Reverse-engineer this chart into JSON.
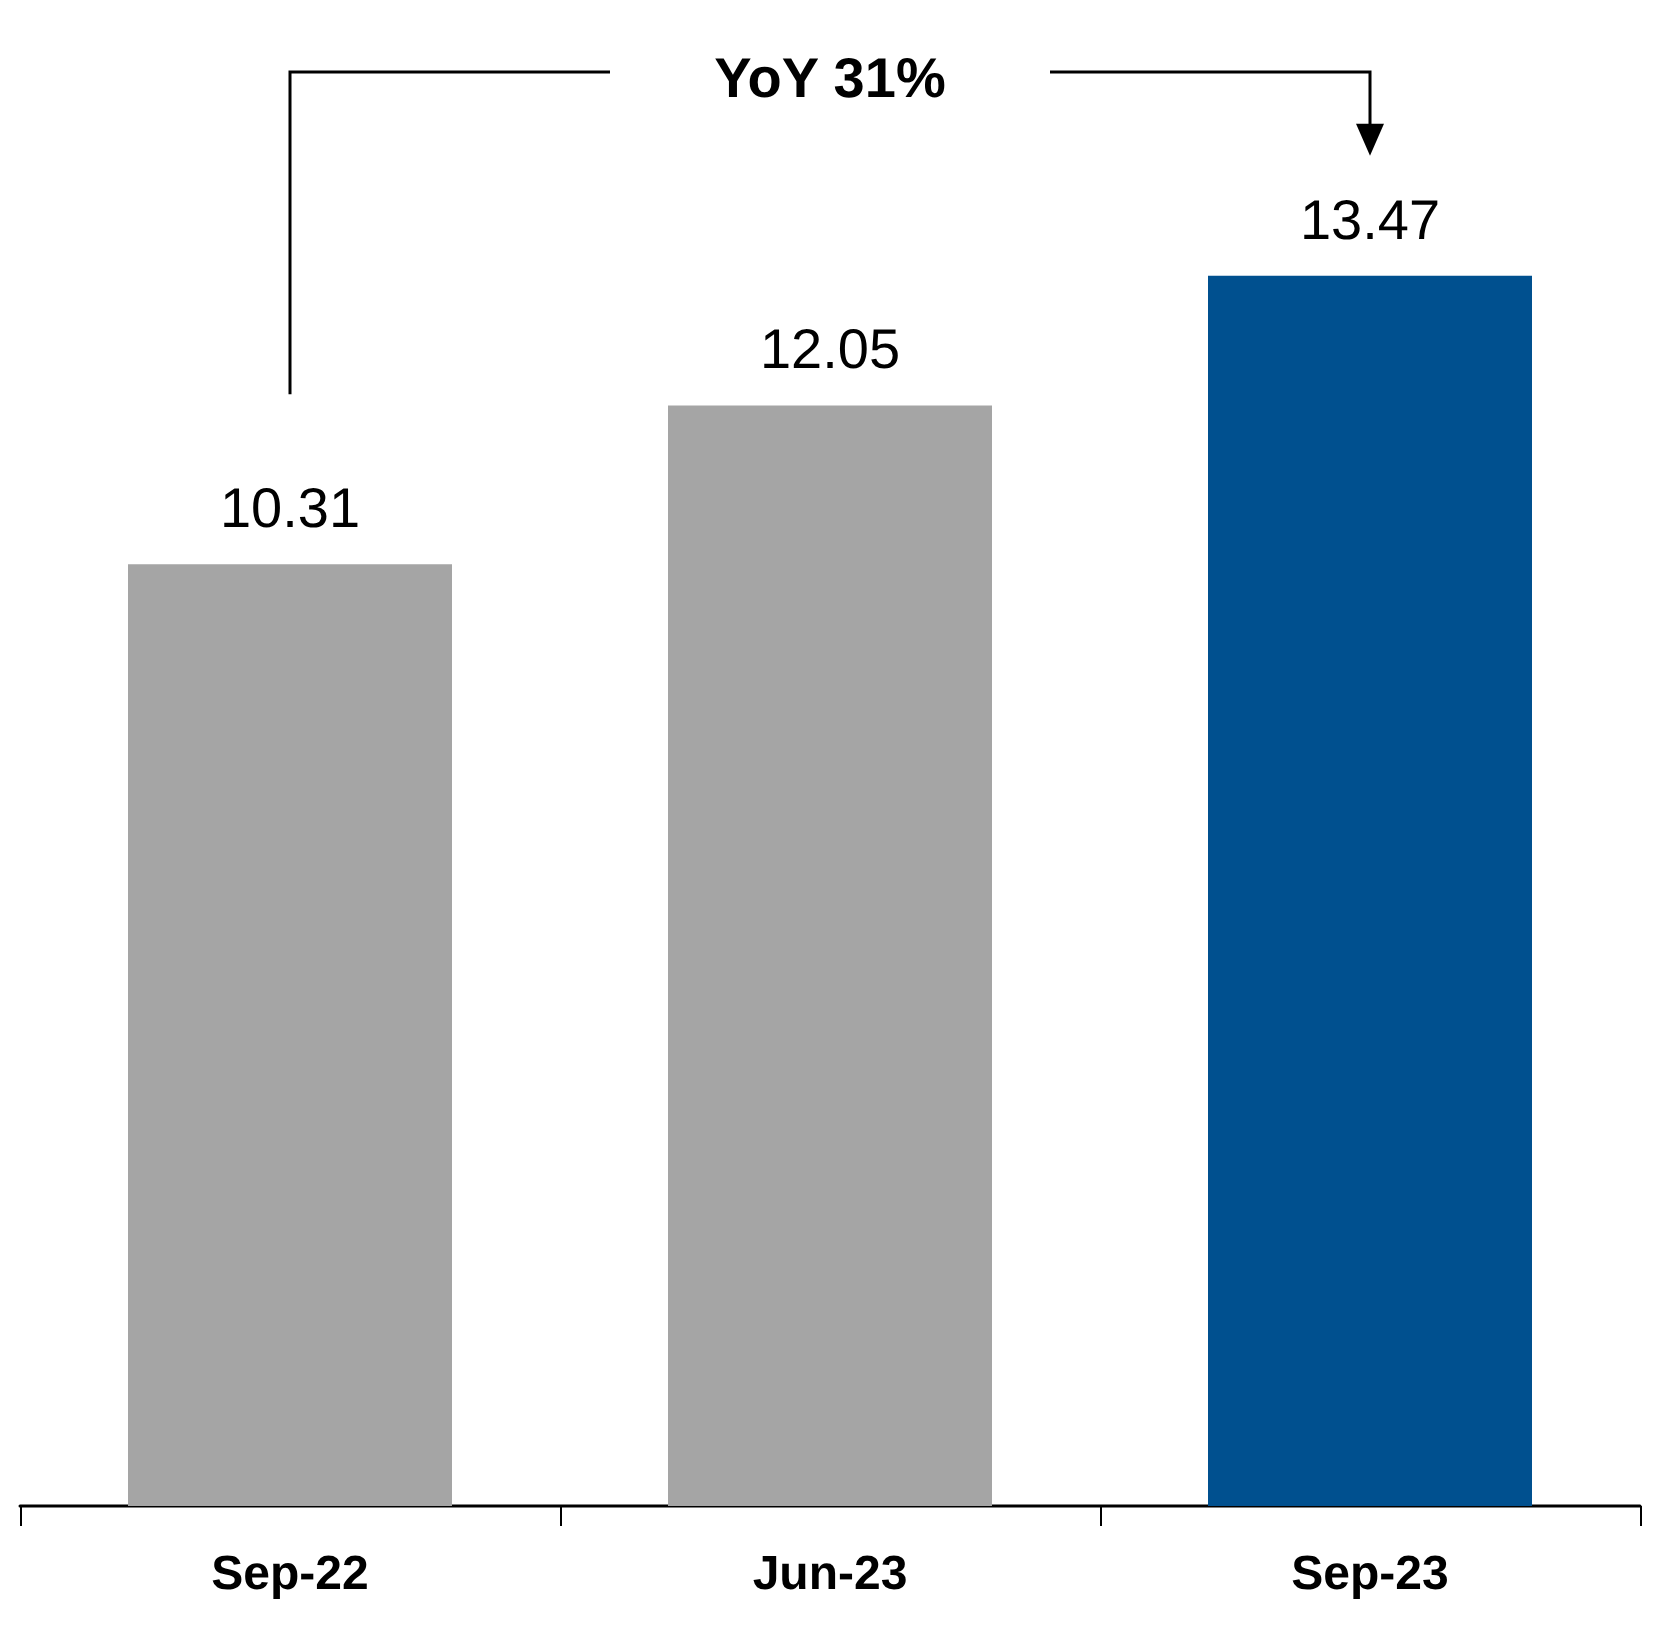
{
  "chart_data": {
    "type": "bar",
    "categories": [
      "Sep-22",
      "Jun-23",
      "Sep-23"
    ],
    "values": [
      10.31,
      12.05,
      13.47
    ],
    "colors": [
      "#a5a5a5",
      "#a5a5a5",
      "#00508f"
    ],
    "data_labels": true,
    "annotations": [
      "YoY 31%"
    ]
  }
}
